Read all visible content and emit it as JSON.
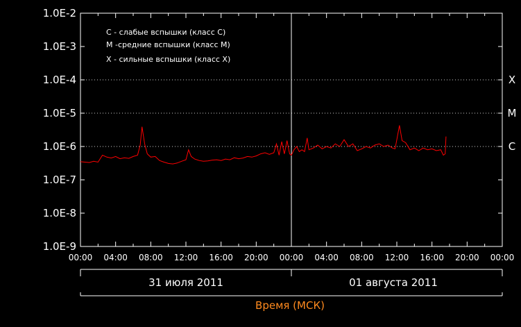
{
  "chart_data": {
    "type": "line",
    "title": "",
    "xlabel": "Время (МСК)",
    "ylabel": "",
    "y_scale": "log",
    "ylim": [
      1e-09,
      0.01
    ],
    "y_tick_labels": [
      "1.0E-9",
      "1.0E-8",
      "1.0E-7",
      "1.0E-6",
      "1.0E-5",
      "1.0E-4",
      "1.0E-3",
      "1.0E-2"
    ],
    "x_hours_range": [
      0,
      48
    ],
    "x_tick_labels": [
      "00:00",
      "04:00",
      "08:00",
      "12:00",
      "16:00",
      "20:00",
      "00:00",
      "04:00",
      "08:00",
      "12:00",
      "16:00",
      "20:00",
      "00:00"
    ],
    "dates": [
      {
        "label": "31 июля 2011"
      },
      {
        "label": "01 августа 2011"
      }
    ],
    "class_levels": [
      {
        "label": "X",
        "value": 0.0001
      },
      {
        "label": "M",
        "value": 1e-05
      },
      {
        "label": "C",
        "value": 1e-06
      }
    ],
    "legend": [
      "C - слабые вспышки (класс C)",
      "M -средние вспышки (класс M)",
      "X - сильные вспышки (класс X)"
    ],
    "grid": false,
    "colors": {
      "series": "#ff0000",
      "axis": "#ffffff",
      "xlabel": "#ff8a1e",
      "background": "#000000"
    },
    "series": [
      {
        "x": [
          0,
          0.5,
          1,
          1.5,
          2,
          2.5,
          3,
          3.5,
          4,
          4.5,
          5,
          5.5,
          6,
          6.5,
          6.8,
          7,
          7.3,
          7.6,
          8,
          8.5,
          9,
          9.5,
          10,
          10.5,
          11,
          11.5,
          12,
          12.3,
          12.6,
          13,
          13.5,
          14,
          14.5,
          15,
          15.5,
          16,
          16.5,
          17,
          17.5,
          18,
          18.5,
          19,
          19.5,
          20,
          20.5,
          21,
          21.5,
          22,
          22.3,
          22.6,
          22.9,
          23.2,
          23.5,
          23.8,
          24,
          24.3,
          24.6,
          24.9,
          25.2,
          25.5,
          25.8,
          26,
          26.5,
          27,
          27.5,
          28,
          28.5,
          29,
          29.5,
          30,
          30.5,
          31,
          31.5,
          32,
          32.5,
          33,
          33.5,
          34,
          34.5,
          35,
          35.5,
          35.8,
          36,
          36.3,
          36.6,
          37,
          37.5,
          38,
          38.5,
          39,
          39.5,
          40,
          40.5,
          41,
          41.3,
          41.5,
          41.6
        ],
        "y": [
          3.5e-07,
          3.4e-07,
          3.3e-07,
          3.6e-07,
          3.4e-07,
          5.5e-07,
          4.8e-07,
          4.5e-07,
          5e-07,
          4.3e-07,
          4.6e-07,
          4.4e-07,
          5e-07,
          5.5e-07,
          1.1e-06,
          3.9e-06,
          1.2e-06,
          6e-07,
          4.8e-07,
          5e-07,
          3.8e-07,
          3.4e-07,
          3.1e-07,
          3e-07,
          3.2e-07,
          3.6e-07,
          4e-07,
          8e-07,
          5e-07,
          4.2e-07,
          3.8e-07,
          3.6e-07,
          3.7e-07,
          3.9e-07,
          4e-07,
          3.8e-07,
          4.2e-07,
          4e-07,
          4.6e-07,
          4.3e-07,
          4.5e-07,
          5e-07,
          4.8e-07,
          5.2e-07,
          6e-07,
          6.5e-07,
          5.8e-07,
          6.5e-07,
          1.2e-06,
          5.5e-07,
          1.4e-06,
          6e-07,
          1.5e-06,
          6e-07,
          5.5e-07,
          8e-07,
          1e-06,
          7e-07,
          8e-07,
          7e-07,
          1.8e-06,
          8e-07,
          9e-07,
          1.1e-06,
          8.5e-07,
          1e-06,
          9e-07,
          1.2e-06,
          1e-06,
          1.6e-06,
          1e-06,
          1.2e-06,
          7.5e-07,
          8.5e-07,
          1e-06,
          9e-07,
          1.1e-06,
          1.2e-06,
          1e-06,
          1.1e-06,
          9e-07,
          8.5e-07,
          1.6e-06,
          4.3e-06,
          1.5e-06,
          1.3e-06,
          8e-07,
          9e-07,
          7.5e-07,
          9e-07,
          8e-07,
          8.5e-07,
          7.5e-07,
          8e-07,
          5.5e-07,
          6e-07,
          2e-06
        ]
      }
    ]
  }
}
